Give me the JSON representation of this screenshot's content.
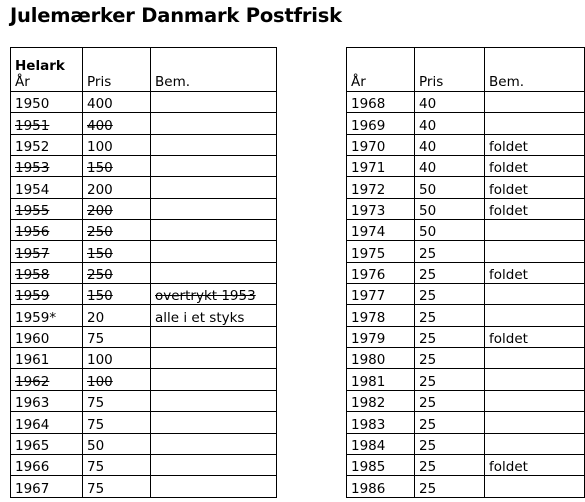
{
  "title": "Julemærker Danmark Postfrisk",
  "left_table": {
    "group_label": "Helark",
    "headers": [
      "År",
      "Pris",
      "Bem."
    ],
    "rows": [
      {
        "year": "1950",
        "price": "400",
        "note": "",
        "struck": false,
        "note_struck": false
      },
      {
        "year": "1951",
        "price": "400",
        "note": "",
        "struck": true,
        "note_struck": false
      },
      {
        "year": "1952",
        "price": "100",
        "note": "",
        "struck": false,
        "note_struck": false
      },
      {
        "year": "1953",
        "price": "150",
        "note": "",
        "struck": true,
        "note_struck": false
      },
      {
        "year": "1954",
        "price": "200",
        "note": "",
        "struck": false,
        "note_struck": false
      },
      {
        "year": "1955",
        "price": "200",
        "note": "",
        "struck": true,
        "note_struck": false
      },
      {
        "year": "1956",
        "price": "250",
        "note": "",
        "struck": true,
        "note_struck": false
      },
      {
        "year": "1957",
        "price": "150",
        "note": "",
        "struck": true,
        "note_struck": false
      },
      {
        "year": "1958",
        "price": "250",
        "note": "",
        "struck": true,
        "note_struck": false
      },
      {
        "year": "1959",
        "price": "150",
        "note": "overtrykt 1953",
        "struck": true,
        "note_struck": true
      },
      {
        "year": "1959*",
        "price": "20",
        "note": "alle i et styks",
        "struck": false,
        "note_struck": false
      },
      {
        "year": "1960",
        "price": "75",
        "note": "",
        "struck": false,
        "note_struck": false
      },
      {
        "year": "1961",
        "price": "100",
        "note": "",
        "struck": false,
        "note_struck": false
      },
      {
        "year": "1962",
        "price": "100",
        "note": "",
        "struck": true,
        "note_struck": false
      },
      {
        "year": "1963",
        "price": "75",
        "note": "",
        "struck": false,
        "note_struck": false
      },
      {
        "year": "1964",
        "price": "75",
        "note": "",
        "struck": false,
        "note_struck": false
      },
      {
        "year": "1965",
        "price": "50",
        "note": "",
        "struck": false,
        "note_struck": false
      },
      {
        "year": "1966",
        "price": "75",
        "note": "",
        "struck": false,
        "note_struck": false
      },
      {
        "year": "1967",
        "price": "75",
        "note": "",
        "struck": false,
        "note_struck": false
      }
    ]
  },
  "right_table": {
    "headers": [
      "År",
      "Pris",
      "Bem."
    ],
    "rows": [
      {
        "year": "1968",
        "price": "40",
        "note": ""
      },
      {
        "year": "1969",
        "price": "40",
        "note": ""
      },
      {
        "year": "1970",
        "price": "40",
        "note": "foldet"
      },
      {
        "year": "1971",
        "price": "40",
        "note": "foldet"
      },
      {
        "year": "1972",
        "price": "50",
        "note": "foldet"
      },
      {
        "year": "1973",
        "price": "50",
        "note": "foldet"
      },
      {
        "year": "1974",
        "price": "50",
        "note": ""
      },
      {
        "year": "1975",
        "price": "25",
        "note": ""
      },
      {
        "year": "1976",
        "price": "25",
        "note": "foldet"
      },
      {
        "year": "1977",
        "price": "25",
        "note": ""
      },
      {
        "year": "1978",
        "price": "25",
        "note": ""
      },
      {
        "year": "1979",
        "price": "25",
        "note": "foldet"
      },
      {
        "year": "1980",
        "price": "25",
        "note": ""
      },
      {
        "year": "1981",
        "price": "25",
        "note": ""
      },
      {
        "year": "1982",
        "price": "25",
        "note": ""
      },
      {
        "year": "1983",
        "price": "25",
        "note": ""
      },
      {
        "year": "1984",
        "price": "25",
        "note": ""
      },
      {
        "year": "1985",
        "price": "25",
        "note": "foldet"
      },
      {
        "year": "1986",
        "price": "25",
        "note": ""
      }
    ]
  }
}
